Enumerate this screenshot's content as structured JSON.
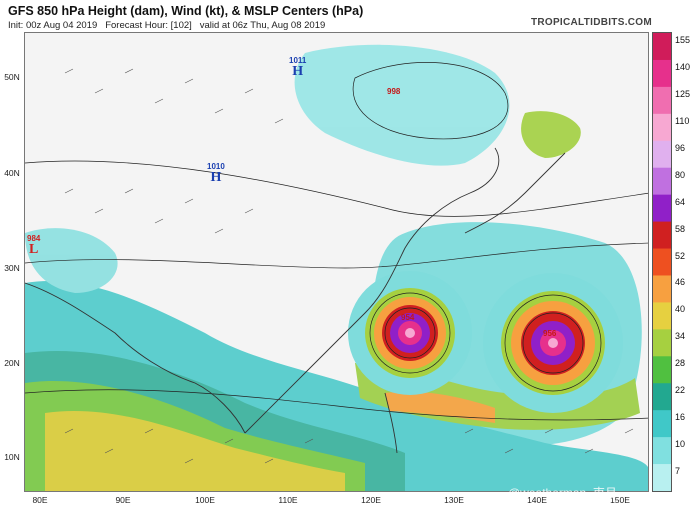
{
  "header": {
    "title": "GFS 850 hPa Height (dam), Wind (kt), & MSLP Centers (hPa)",
    "init": "Init: 00z Aug 04 2019",
    "forecast_hour": "Forecast Hour: [102]",
    "valid": "valid at 06z Thu, Aug 08 2019",
    "brand": "TROPICALTIDBITS.COM"
  },
  "axes": {
    "latitudes": [
      "50N",
      "40N",
      "30N",
      "20N",
      "10N"
    ],
    "longitudes": [
      "80E",
      "90E",
      "100E",
      "110E",
      "120E",
      "130E",
      "140E",
      "150E"
    ]
  },
  "colorbar": {
    "labels": [
      "155",
      "140",
      "125",
      "110",
      "96",
      "80",
      "64",
      "58",
      "52",
      "46",
      "40",
      "34",
      "28",
      "22",
      "16",
      "10",
      "7"
    ],
    "colors": [
      "#d01c5a",
      "#e6308c",
      "#f06eb0",
      "#f7a8d2",
      "#e0b0ee",
      "#c070e0",
      "#9020c8",
      "#d02020",
      "#ee5020",
      "#f7a040",
      "#e6d040",
      "#a6d040",
      "#50c040",
      "#22a890",
      "#40c8c8",
      "#80e0e0",
      "#b8f0f0"
    ]
  },
  "centers": {
    "highs": [
      {
        "value": "1011",
        "label": "H"
      },
      {
        "value": "1010",
        "label": "H"
      }
    ],
    "lows": [
      {
        "value": "984",
        "label": "L"
      }
    ],
    "pressures": [
      "998",
      "954",
      "956"
    ]
  },
  "watermark": "@weatherman_東月"
}
